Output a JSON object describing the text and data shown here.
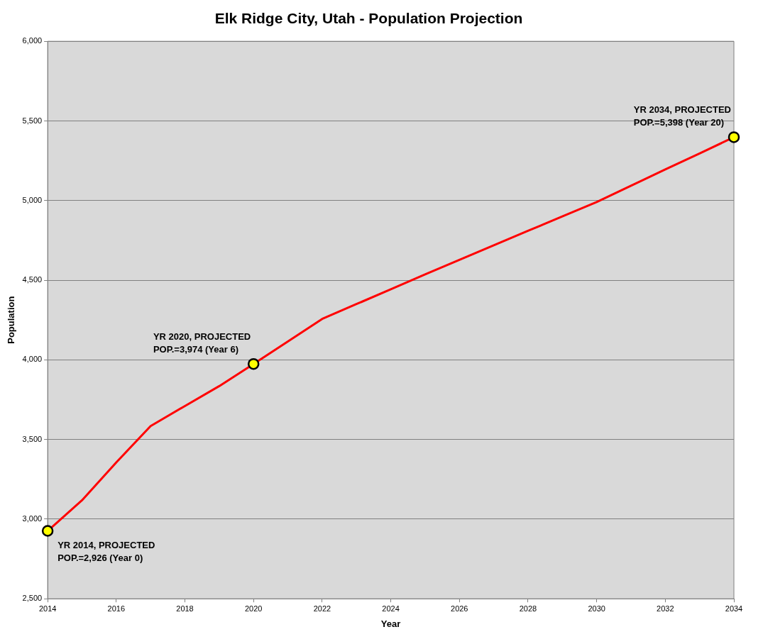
{
  "chart_data": {
    "type": "line",
    "title": "Elk Ridge City, Utah - Population Projection",
    "xlabel": "Year",
    "ylabel": "Population",
    "x": [
      2014,
      2015,
      2016,
      2017,
      2018,
      2019,
      2020,
      2021,
      2022,
      2023,
      2024,
      2025,
      2026,
      2027,
      2028,
      2029,
      2030,
      2031,
      2032,
      2033,
      2034
    ],
    "series": [
      {
        "type": "line",
        "color": "#ff0000",
        "marker": "none",
        "values": [
          2926,
          3118,
          3356,
          3584,
          3710,
          3835,
          3974,
          4115,
          4257,
          4350,
          4443,
          4536,
          4628,
          4719,
          4810,
          4900,
          4991,
          5093,
          5195,
          5296,
          5398
        ]
      },
      {
        "type": "scatter",
        "color": "#ffff00",
        "marker": "circle",
        "x": [
          2014,
          2020,
          2034
        ],
        "values": [
          2926,
          3974,
          5398
        ]
      }
    ],
    "xlim": [
      2014,
      2034
    ],
    "xticks": [
      2014,
      2016,
      2018,
      2020,
      2022,
      2024,
      2026,
      2028,
      2030,
      2032,
      2034
    ],
    "ylim": [
      2500,
      6000
    ],
    "yticks": [
      {
        "value": 2500,
        "label": "2,500"
      },
      {
        "value": 3000,
        "label": "3,000"
      },
      {
        "value": 3500,
        "label": "3,500"
      },
      {
        "value": 4000,
        "label": "4,000"
      },
      {
        "value": 4500,
        "label": "4,500"
      },
      {
        "value": 5000,
        "label": "5,000"
      },
      {
        "value": 5500,
        "label": "5,500"
      },
      {
        "value": 6000,
        "label": "6,000"
      }
    ],
    "grid": "y",
    "legend": false,
    "annotations": [
      {
        "text": "YR 2014, PROJECTED\nPOP.=2,926 (Year 0)",
        "x": 2014,
        "y": 2926
      },
      {
        "text": "YR 2020, PROJECTED\nPOP.=3,974 (Year 6)",
        "x": 2020,
        "y": 3974
      },
      {
        "text": "YR 2034, PROJECTED\nPOP.=5,398 (Year 20)",
        "x": 2034,
        "y": 5398
      }
    ]
  }
}
